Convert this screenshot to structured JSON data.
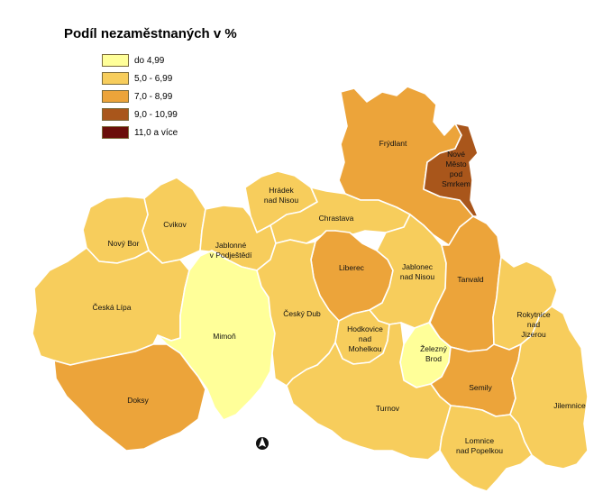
{
  "title": "Podíl nezaměstnaných v %",
  "legend": [
    {
      "label": "do 4,99",
      "color": "#ffff99"
    },
    {
      "label": "5,0 - 6,99",
      "color": "#f7cd5c"
    },
    {
      "label": "7,0 - 8,99",
      "color": "#eca43a"
    },
    {
      "label": "9,0 - 10,99",
      "color": "#a9561b"
    },
    {
      "label": "11,0 a více",
      "color": "#6b0f0a"
    }
  ],
  "regions": [
    {
      "id": "frydlant",
      "label": [
        "Frýdlant"
      ],
      "class": 2
    },
    {
      "id": "nove-mesto",
      "label": [
        "Nové",
        "Město",
        "pod",
        "Smrkem"
      ],
      "class": 3
    },
    {
      "id": "hradek",
      "label": [
        "Hrádek",
        "nad Nisou"
      ],
      "class": 1
    },
    {
      "id": "chrastava",
      "label": [
        "Chrastava"
      ],
      "class": 1
    },
    {
      "id": "cvikov",
      "label": [
        "Cvikov"
      ],
      "class": 1
    },
    {
      "id": "novy-bor",
      "label": [
        "Nový Bor"
      ],
      "class": 1
    },
    {
      "id": "jablonne",
      "label": [
        "Jablonné",
        "v Podještědí"
      ],
      "class": 1
    },
    {
      "id": "liberec",
      "label": [
        "Liberec"
      ],
      "class": 2
    },
    {
      "id": "jablonec",
      "label": [
        "Jablonec",
        "nad Nisou"
      ],
      "class": 1
    },
    {
      "id": "tanvald",
      "label": [
        "Tanvald"
      ],
      "class": 2
    },
    {
      "id": "ceska-lipa",
      "label": [
        "Česká Lípa"
      ],
      "class": 1
    },
    {
      "id": "mimon",
      "label": [
        "Mimoň"
      ],
      "class": 0
    },
    {
      "id": "cesky-dub",
      "label": [
        "Český Dub"
      ],
      "class": 1
    },
    {
      "id": "hodkovice",
      "label": [
        "Hodkovice",
        "nad",
        "Mohelkou"
      ],
      "class": 1
    },
    {
      "id": "zelezny-brod",
      "label": [
        "Železný",
        "Brod"
      ],
      "class": 0
    },
    {
      "id": "rokytnice",
      "label": [
        "Rokytnice",
        "nad",
        "Jizerou"
      ],
      "class": 1
    },
    {
      "id": "doksy",
      "label": [
        "Doksy"
      ],
      "class": 2
    },
    {
      "id": "semily",
      "label": [
        "Semily"
      ],
      "class": 2
    },
    {
      "id": "jilemnice",
      "label": [
        "Jilemnice"
      ],
      "class": 1
    },
    {
      "id": "turnov",
      "label": [
        "Turnov"
      ],
      "class": 1
    },
    {
      "id": "lomnice",
      "label": [
        "Lomnice",
        "nad Popelkou"
      ],
      "class": 1
    }
  ],
  "north_arrow": "north-arrow-icon"
}
